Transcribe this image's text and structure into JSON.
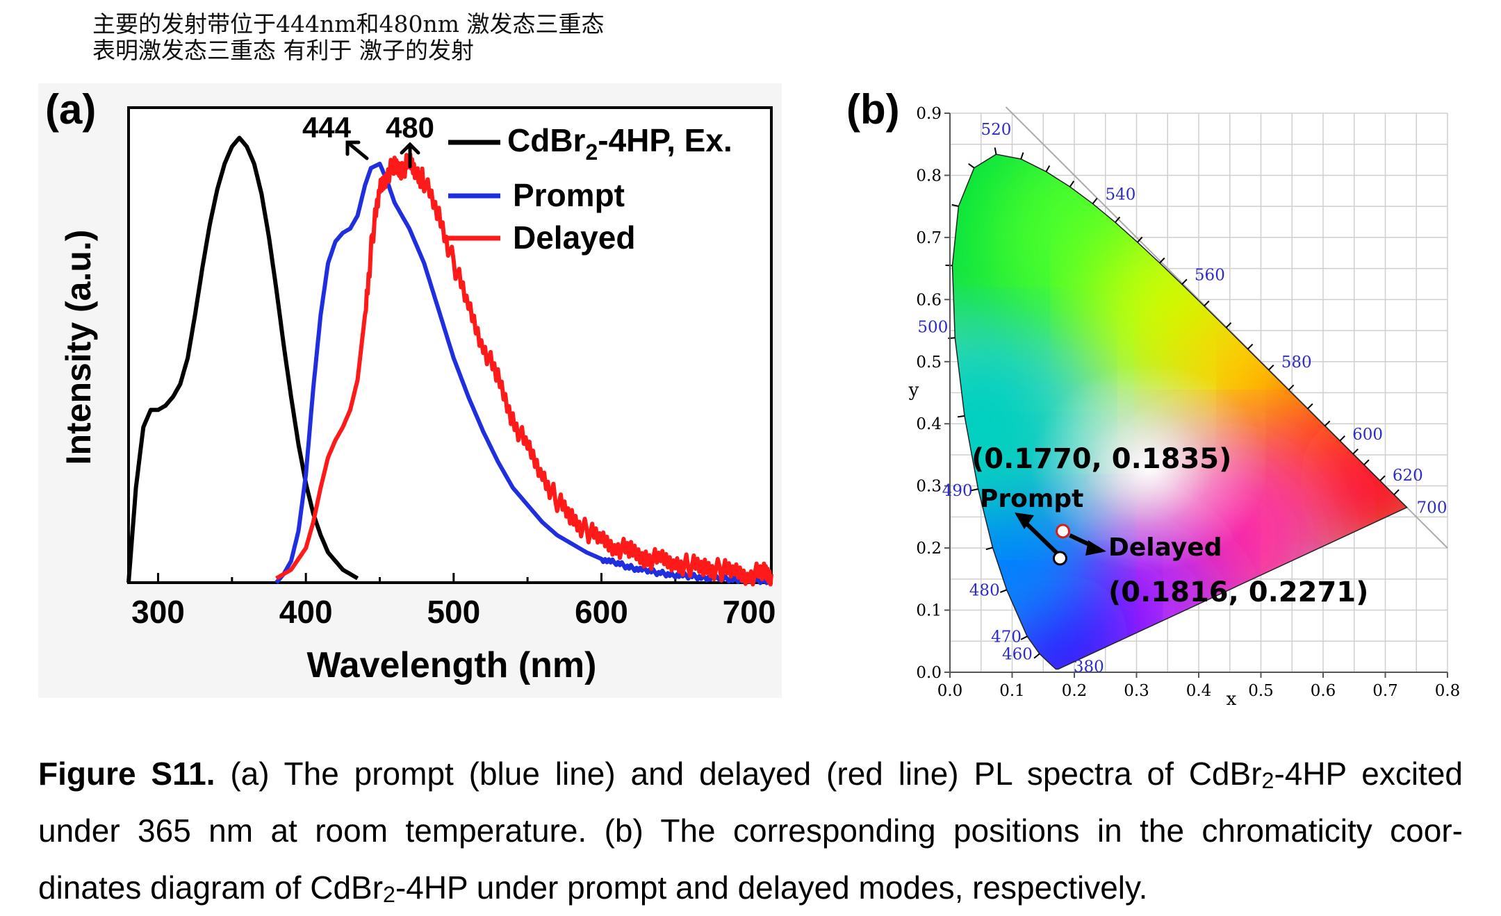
{
  "notes": {
    "line1": "主要的发射带位于444nm和480nm 激发态三重态",
    "line2": "表明激发态三重态 有利于 激子的发射"
  },
  "panel_a": {
    "label": "(a)",
    "xlabel": "Wavelength (nm)",
    "ylabel": "Intensity (a.u.)",
    "peak_labels": [
      "444",
      "480"
    ],
    "legend": {
      "ex_prefix": "CdBr",
      "ex_sub": "2",
      "ex_suffix": "-4HP, Ex.",
      "prompt": "Prompt",
      "delayed": "Delayed"
    }
  },
  "panel_b": {
    "label": "(b)",
    "xlabel": "x",
    "ylabel": "y",
    "prompt_coord": "(0.1770, 0.1835)",
    "delayed_coord": "(0.1816, 0.2271)",
    "prompt_label": "Prompt",
    "delayed_label": "Delayed"
  },
  "caption": {
    "bold": "Figure S11.",
    "line1_rest": " (a) The prompt (blue line) and delayed (red line) PL spectra of CdBr",
    "sub": "2",
    "line1_end": "-4HP excited",
    "line2": "under 365 nm at room temperature. (b) The corresponding positions in the chromaticity coor-",
    "line3_a": "dinates diagram of CdBr",
    "line3_b": "-4HP under prompt and delayed modes, respectively."
  },
  "colors": {
    "ex": "#000000",
    "prompt": "#1f2fe0",
    "delayed": "#ff1a1a",
    "wl_label": "#2c2cc8"
  },
  "chart_data": [
    {
      "type": "line",
      "panel": "(a)",
      "xlabel": "Wavelength (nm)",
      "ylabel": "Intensity (a.u.)",
      "xlim": [
        280,
        715
      ],
      "ylim": [
        0,
        1.1
      ],
      "xticks": [
        300,
        400,
        500,
        600,
        700
      ],
      "series": [
        {
          "name": "CdBr2-4HP, Ex.",
          "color": "#000000",
          "x": [
            280,
            285,
            290,
            295,
            300,
            305,
            310,
            315,
            320,
            325,
            330,
            335,
            340,
            345,
            350,
            355,
            360,
            365,
            370,
            375,
            380,
            385,
            390,
            395,
            400,
            405,
            410,
            415,
            420,
            425,
            430,
            435
          ],
          "y": [
            0.0,
            0.22,
            0.36,
            0.4,
            0.4,
            0.41,
            0.43,
            0.46,
            0.52,
            0.62,
            0.73,
            0.83,
            0.91,
            0.97,
            1.01,
            1.03,
            1.01,
            0.97,
            0.9,
            0.8,
            0.68,
            0.55,
            0.43,
            0.32,
            0.23,
            0.16,
            0.11,
            0.07,
            0.05,
            0.03,
            0.02,
            0.01
          ]
        },
        {
          "name": "Prompt",
          "color": "#1f2fe0",
          "x": [
            380,
            385,
            390,
            395,
            400,
            405,
            410,
            415,
            420,
            425,
            430,
            435,
            440,
            444,
            450,
            455,
            460,
            470,
            480,
            490,
            500,
            510,
            520,
            530,
            540,
            550,
            560,
            570,
            580,
            590,
            600,
            610,
            620,
            630,
            640,
            650,
            660,
            670,
            680,
            690,
            700,
            710,
            715
          ],
          "y": [
            0.0,
            0.02,
            0.05,
            0.12,
            0.25,
            0.45,
            0.62,
            0.74,
            0.79,
            0.81,
            0.82,
            0.85,
            0.92,
            0.96,
            0.97,
            0.93,
            0.88,
            0.82,
            0.74,
            0.63,
            0.52,
            0.43,
            0.35,
            0.28,
            0.22,
            0.18,
            0.14,
            0.11,
            0.09,
            0.07,
            0.055,
            0.045,
            0.035,
            0.028,
            0.022,
            0.018,
            0.015,
            0.012,
            0.01,
            0.008,
            0.006,
            0.005,
            0.005
          ]
        },
        {
          "name": "Delayed",
          "color": "#ff1a1a",
          "x": [
            380,
            390,
            400,
            405,
            410,
            415,
            420,
            425,
            430,
            435,
            440,
            445,
            450,
            455,
            460,
            465,
            470,
            475,
            480,
            490,
            500,
            510,
            520,
            530,
            540,
            550,
            560,
            570,
            580,
            590,
            600,
            610,
            620,
            630,
            640,
            650,
            660,
            670,
            680,
            690,
            700,
            710,
            715
          ],
          "y": [
            0.01,
            0.03,
            0.08,
            0.14,
            0.22,
            0.29,
            0.33,
            0.36,
            0.4,
            0.47,
            0.62,
            0.8,
            0.91,
            0.95,
            0.96,
            0.96,
            0.97,
            0.95,
            0.93,
            0.85,
            0.74,
            0.64,
            0.55,
            0.47,
            0.38,
            0.31,
            0.25,
            0.19,
            0.15,
            0.12,
            0.1,
            0.085,
            0.07,
            0.06,
            0.05,
            0.045,
            0.04,
            0.035,
            0.03,
            0.025,
            0.02,
            0.02,
            0.02
          ]
        }
      ]
    },
    {
      "type": "scatter",
      "panel": "(b)",
      "xlabel": "x",
      "ylabel": "y",
      "xlim": [
        0.0,
        0.8
      ],
      "ylim": [
        0.0,
        0.9
      ],
      "xticks": [
        "0.0",
        "0.1",
        "0.2",
        "0.3",
        "0.4",
        "0.5",
        "0.6",
        "0.7",
        "0.8"
      ],
      "yticks": [
        "0.0",
        "0.1",
        "0.2",
        "0.3",
        "0.4",
        "0.5",
        "0.6",
        "0.7",
        "0.8",
        "0.9"
      ],
      "grid": true,
      "points": [
        {
          "name": "Prompt",
          "x": 0.177,
          "y": 0.1835
        },
        {
          "name": "Delayed",
          "x": 0.1816,
          "y": 0.2271
        }
      ],
      "wavelength_labels": [
        {
          "nm": "380",
          "x": 0.1741,
          "y": 0.005
        },
        {
          "nm": "460",
          "x": 0.144,
          "y": 0.0297
        },
        {
          "nm": "470",
          "x": 0.1241,
          "y": 0.0578
        },
        {
          "nm": "480",
          "x": 0.0913,
          "y": 0.1327
        },
        {
          "nm": "490",
          "x": 0.0454,
          "y": 0.295
        },
        {
          "nm": "500",
          "x": 0.0082,
          "y": 0.5384
        },
        {
          "nm": "520",
          "x": 0.0743,
          "y": 0.8338
        },
        {
          "nm": "540",
          "x": 0.2296,
          "y": 0.7543
        },
        {
          "nm": "560",
          "x": 0.3731,
          "y": 0.6245
        },
        {
          "nm": "580",
          "x": 0.5125,
          "y": 0.4866
        },
        {
          "nm": "600",
          "x": 0.627,
          "y": 0.3725
        },
        {
          "nm": "620",
          "x": 0.6915,
          "y": 0.3083
        },
        {
          "nm": "700",
          "x": 0.7347,
          "y": 0.2653
        }
      ]
    }
  ]
}
